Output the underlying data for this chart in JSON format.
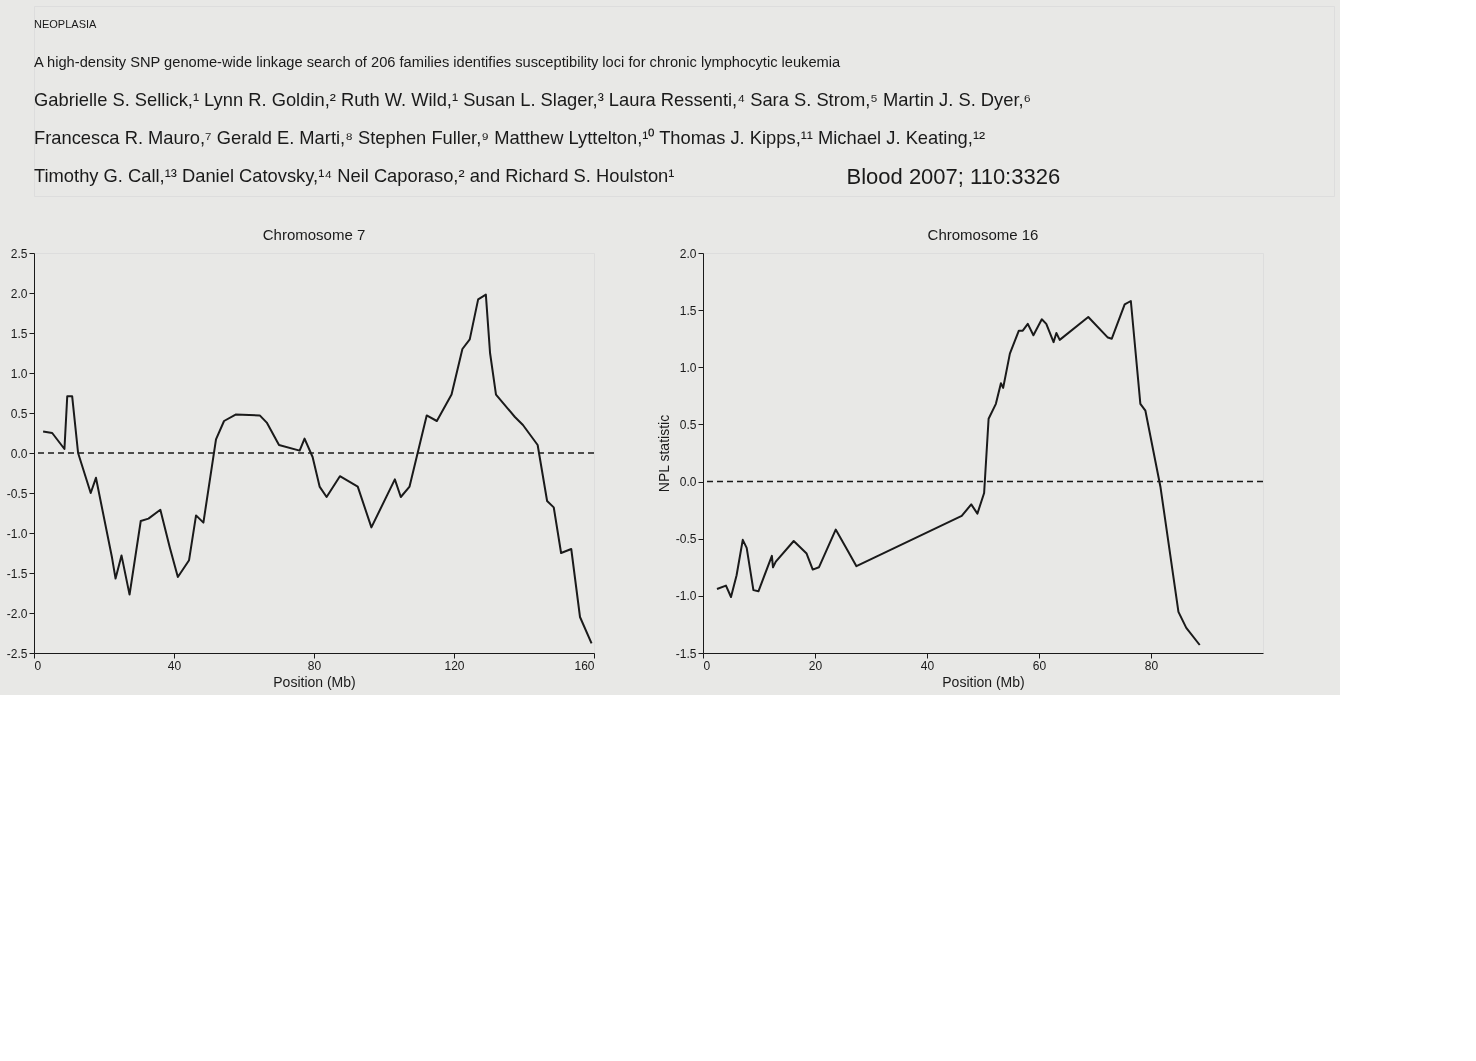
{
  "chart_data": [
    {
      "type": "line",
      "title": "Chromosome 7",
      "xlabel": "Position (Mb)",
      "annotations": [
        "NEOPLASIA",
        "A high-density SNP genome-wide linkage search of 206 families identifies susceptibility loci for chronic lymphocytic leukemia",
        "Gabrielle S. Sellick,¹ Lynn R. Goldin,² Ruth W. Wild,¹ Susan L. Slager,³ Laura Ressenti,⁴ Sara S. Strom,⁵ Martin J. S. Dyer,⁶",
        "Francesca R. Mauro,⁷ Gerald E. Marti,⁸ Stephen Fuller,⁹ Matthew Lyttelton,¹⁰ Thomas J. Kipps,¹¹ Michael J. Keating,¹²",
        "Timothy G. Call,¹³ Daniel Catovsky,¹⁴ Neil Caporaso,² and Richard S. Houlston¹",
        "Blood 2007; 110:3326"
      ],
      "x": [
        2.6,
        5.2,
        8.7,
        9.5,
        10.9,
        12.6,
        16.2,
        17.7,
        22.3,
        23.3,
        25.0,
        27.3,
        30.5,
        32.7,
        36.1,
        38.8,
        41.1,
        44.3,
        46.3,
        48.4,
        52.0,
        54.3,
        57.6,
        64.5,
        66.5,
        70.0,
        75.9,
        77.3,
        79.6,
        81.6,
        83.6,
        87.4,
        92.5,
        96.4,
        103.1,
        104.8,
        107.3,
        112.2,
        115.1,
        119.3,
        122.4,
        124.5,
        126.9,
        129.1,
        130.3,
        132.0,
        137.4,
        139.7,
        143.9,
        146.6,
        148.5,
        150.6,
        153.5,
        156.0,
        159.3
      ],
      "series": [
        {
          "color": "#1a1a1a",
          "values": [
            0.27,
            0.25,
            0.05,
            0.71,
            0.71,
            0.0,
            -0.5,
            -0.31,
            -1.31,
            -1.57,
            -1.28,
            -1.77,
            -0.85,
            -0.82,
            -0.71,
            -1.18,
            -1.55,
            -1.34,
            -0.78,
            -0.87,
            0.17,
            0.4,
            0.48,
            0.47,
            0.38,
            0.1,
            0.03,
            0.18,
            -0.05,
            -0.42,
            -0.55,
            -0.29,
            -0.42,
            -0.93,
            -0.33,
            -0.55,
            -0.42,
            0.47,
            0.4,
            0.73,
            1.3,
            1.42,
            1.92,
            1.98,
            1.25,
            0.73,
            0.45,
            0.35,
            0.1,
            -0.6,
            -0.68,
            -1.25,
            -1.2,
            -2.05,
            -2.38
          ]
        }
      ],
      "xlim": [
        0,
        160
      ],
      "xticks": [
        0,
        40,
        80,
        120,
        160
      ],
      "ylim": [
        -2.5,
        2.5
      ],
      "yticks": [
        -2.5,
        {
          "value": -2,
          "label": "-2.0"
        },
        -1.5,
        {
          "value": -1,
          "label": "-1.0"
        },
        -0.5,
        {
          "value": 0,
          "label": "0.0"
        },
        0.5,
        {
          "value": 1,
          "label": "1.0"
        },
        1.5,
        {
          "value": 2,
          "label": "2.0"
        },
        2.5
      ],
      "ref_lines": [
        {
          "axis": "y",
          "value": 0,
          "line_style": "dashed",
          "color": "#1a1a1a"
        }
      ],
      "grid": false,
      "legend": false,
      "marker": "none",
      "line_style": "solid"
    },
    {
      "type": "line",
      "title": "Chromosome 16",
      "xlabel": "Position (Mb)",
      "ylabel": "NPL statistic",
      "x": [
        2.5,
        4.1,
        5.0,
        6.0,
        7.1,
        7.8,
        9.0,
        9.9,
        12.3,
        12.5,
        13.0,
        16.2,
        18.5,
        19.6,
        20.7,
        23.7,
        25.8,
        27.4,
        46.2,
        47.9,
        49.0,
        50.2,
        51.0,
        52.3,
        53.2,
        53.6,
        54.8,
        56.4,
        57.1,
        58.0,
        59.0,
        60.5,
        61.3,
        62.6,
        63.1,
        63.7,
        68.8,
        72.3,
        73.0,
        75.3,
        76.4,
        78.1,
        79.0,
        81.7,
        84.9,
        86.3,
        88.7
      ],
      "series": [
        {
          "color": "#1a1a1a",
          "values": [
            -0.94,
            -0.91,
            -1.01,
            -0.82,
            -0.51,
            -0.58,
            -0.95,
            -0.96,
            -0.65,
            -0.75,
            -0.7,
            -0.52,
            -0.63,
            -0.77,
            -0.75,
            -0.42,
            -0.6,
            -0.74,
            -0.3,
            -0.2,
            -0.28,
            -0.1,
            0.55,
            0.68,
            0.86,
            0.82,
            1.12,
            1.32,
            1.32,
            1.38,
            1.28,
            1.42,
            1.38,
            1.22,
            1.3,
            1.24,
            1.44,
            1.26,
            1.25,
            1.55,
            1.58,
            0.68,
            0.62,
            -0.05,
            -1.14,
            -1.28,
            -1.43
          ]
        }
      ],
      "xlim": [
        0,
        100
      ],
      "xticks": [
        0,
        20,
        40,
        60,
        80
      ],
      "ylim": [
        -1.5,
        2.0
      ],
      "yticks": [
        -1.5,
        {
          "value": -1,
          "label": "-1.0"
        },
        -0.5,
        {
          "value": 0,
          "label": "0.0"
        },
        0.5,
        {
          "value": 1,
          "label": "1.0"
        },
        1.5,
        {
          "value": 2,
          "label": "2.0"
        }
      ],
      "ref_lines": [
        {
          "axis": "y",
          "value": 0,
          "line_style": "dashed",
          "color": "#1a1a1a"
        }
      ],
      "grid": false,
      "legend": false,
      "marker": "none",
      "line_style": "solid"
    }
  ]
}
